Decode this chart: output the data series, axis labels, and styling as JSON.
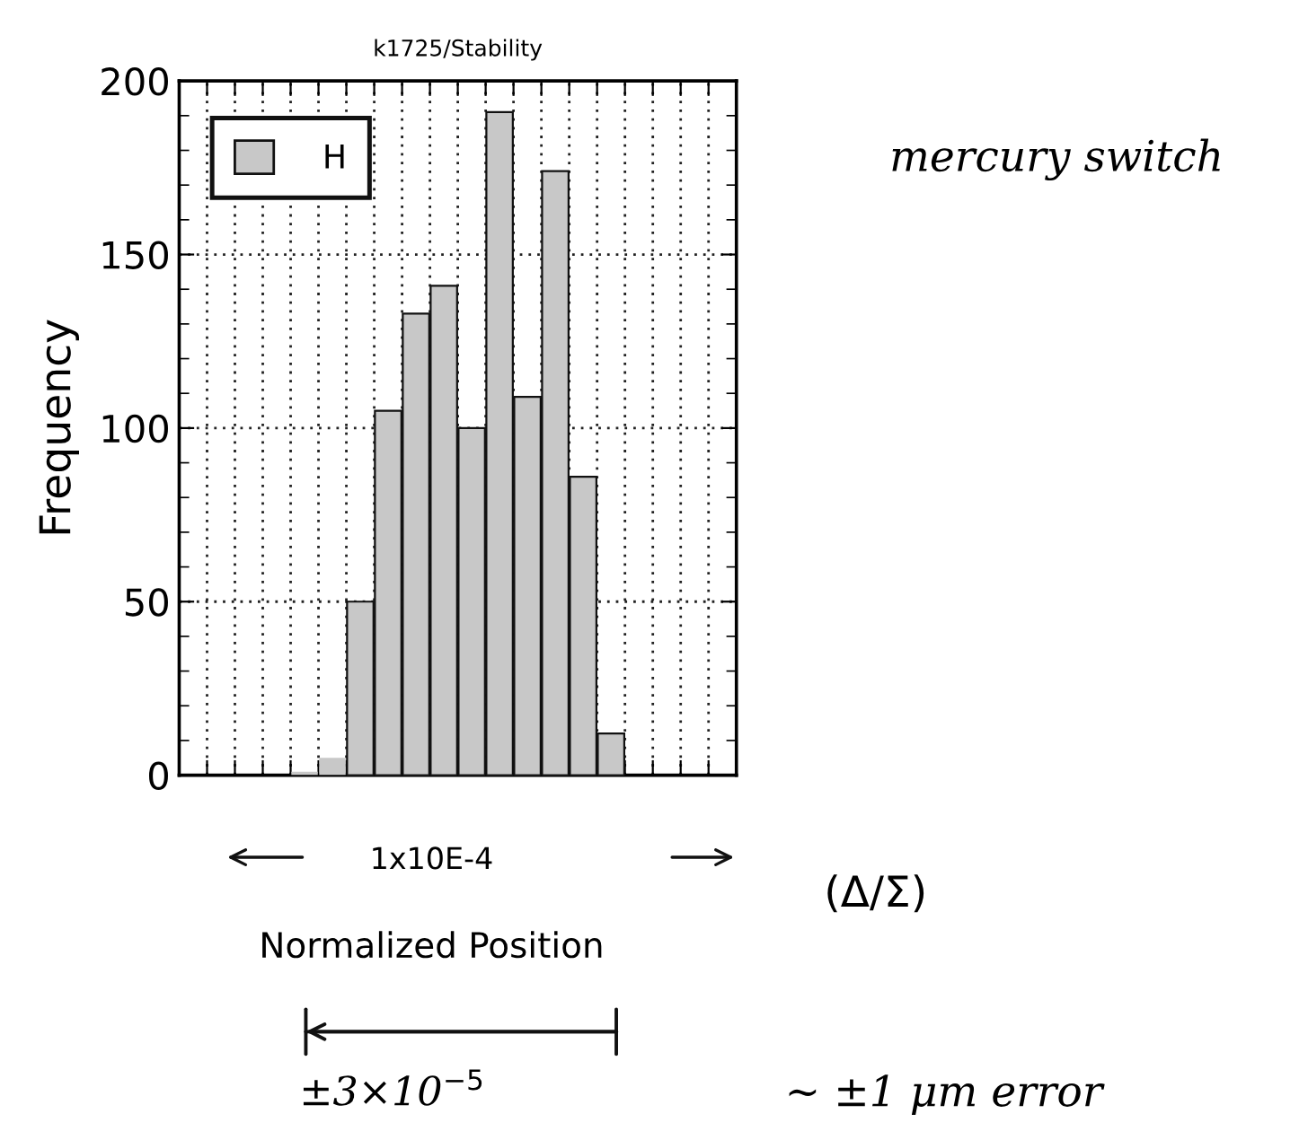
{
  "chart_data": {
    "type": "bar",
    "title": "k1725/Stability",
    "xlabel": "Normalized Position",
    "ylabel": "Frequency",
    "categories": [
      null,
      null,
      null,
      null,
      null,
      null,
      null,
      null,
      null,
      null,
      null,
      null,
      null,
      null,
      null,
      null,
      null,
      null,
      null,
      null
    ],
    "series": [
      {
        "name": "H",
        "color": "#c8c8c8",
        "values": [
          0,
          0,
          0,
          0,
          1,
          5,
          50,
          105,
          133,
          141,
          100,
          191,
          109,
          174,
          86,
          12,
          0,
          0,
          0,
          0
        ]
      }
    ],
    "ylim": [
      0,
      200
    ],
    "yticks": [
      0,
      50,
      100,
      150,
      200
    ],
    "grid": true,
    "legend": "top left",
    "tick_labels": "y",
    "annotations": [
      "1x10E-4",
      "(Δ/Σ)",
      "mercury switch",
      "±3×10$^{−5}$",
      "~ ±1 μm error"
    ]
  }
}
